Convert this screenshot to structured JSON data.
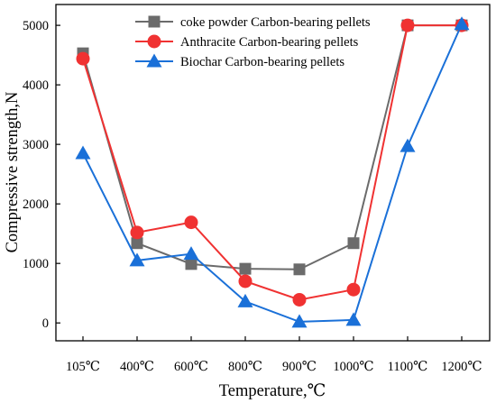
{
  "chart_data": {
    "type": "line",
    "title": "",
    "xlabel": "Temperature,℃",
    "ylabel": "Compressive strength,N",
    "categories": [
      "105℃",
      "400℃",
      "600℃",
      "800℃",
      "900℃",
      "1000℃",
      "1100℃",
      "1200℃"
    ],
    "ylim": [
      -300,
      5350
    ],
    "yticks": [
      0,
      1000,
      2000,
      3000,
      4000,
      5000
    ],
    "grid": false,
    "legend_position": "top-right",
    "series": [
      {
        "name": "coke powder Carbon-bearing pellets",
        "color": "#6b6b6b",
        "marker": "square",
        "values": [
          4530,
          1340,
          990,
          910,
          900,
          1340,
          5000,
          5000
        ]
      },
      {
        "name": "Anthracite Carbon-bearing pellets",
        "color": "#f03232",
        "marker": "circle",
        "values": [
          4440,
          1520,
          1690,
          700,
          390,
          560,
          5000,
          5000
        ]
      },
      {
        "name": "Biochar Carbon-bearing pellets",
        "color": "#1a70d8",
        "marker": "triangle",
        "values": [
          2850,
          1050,
          1160,
          360,
          20,
          50,
          2970,
          5020
        ]
      }
    ]
  }
}
